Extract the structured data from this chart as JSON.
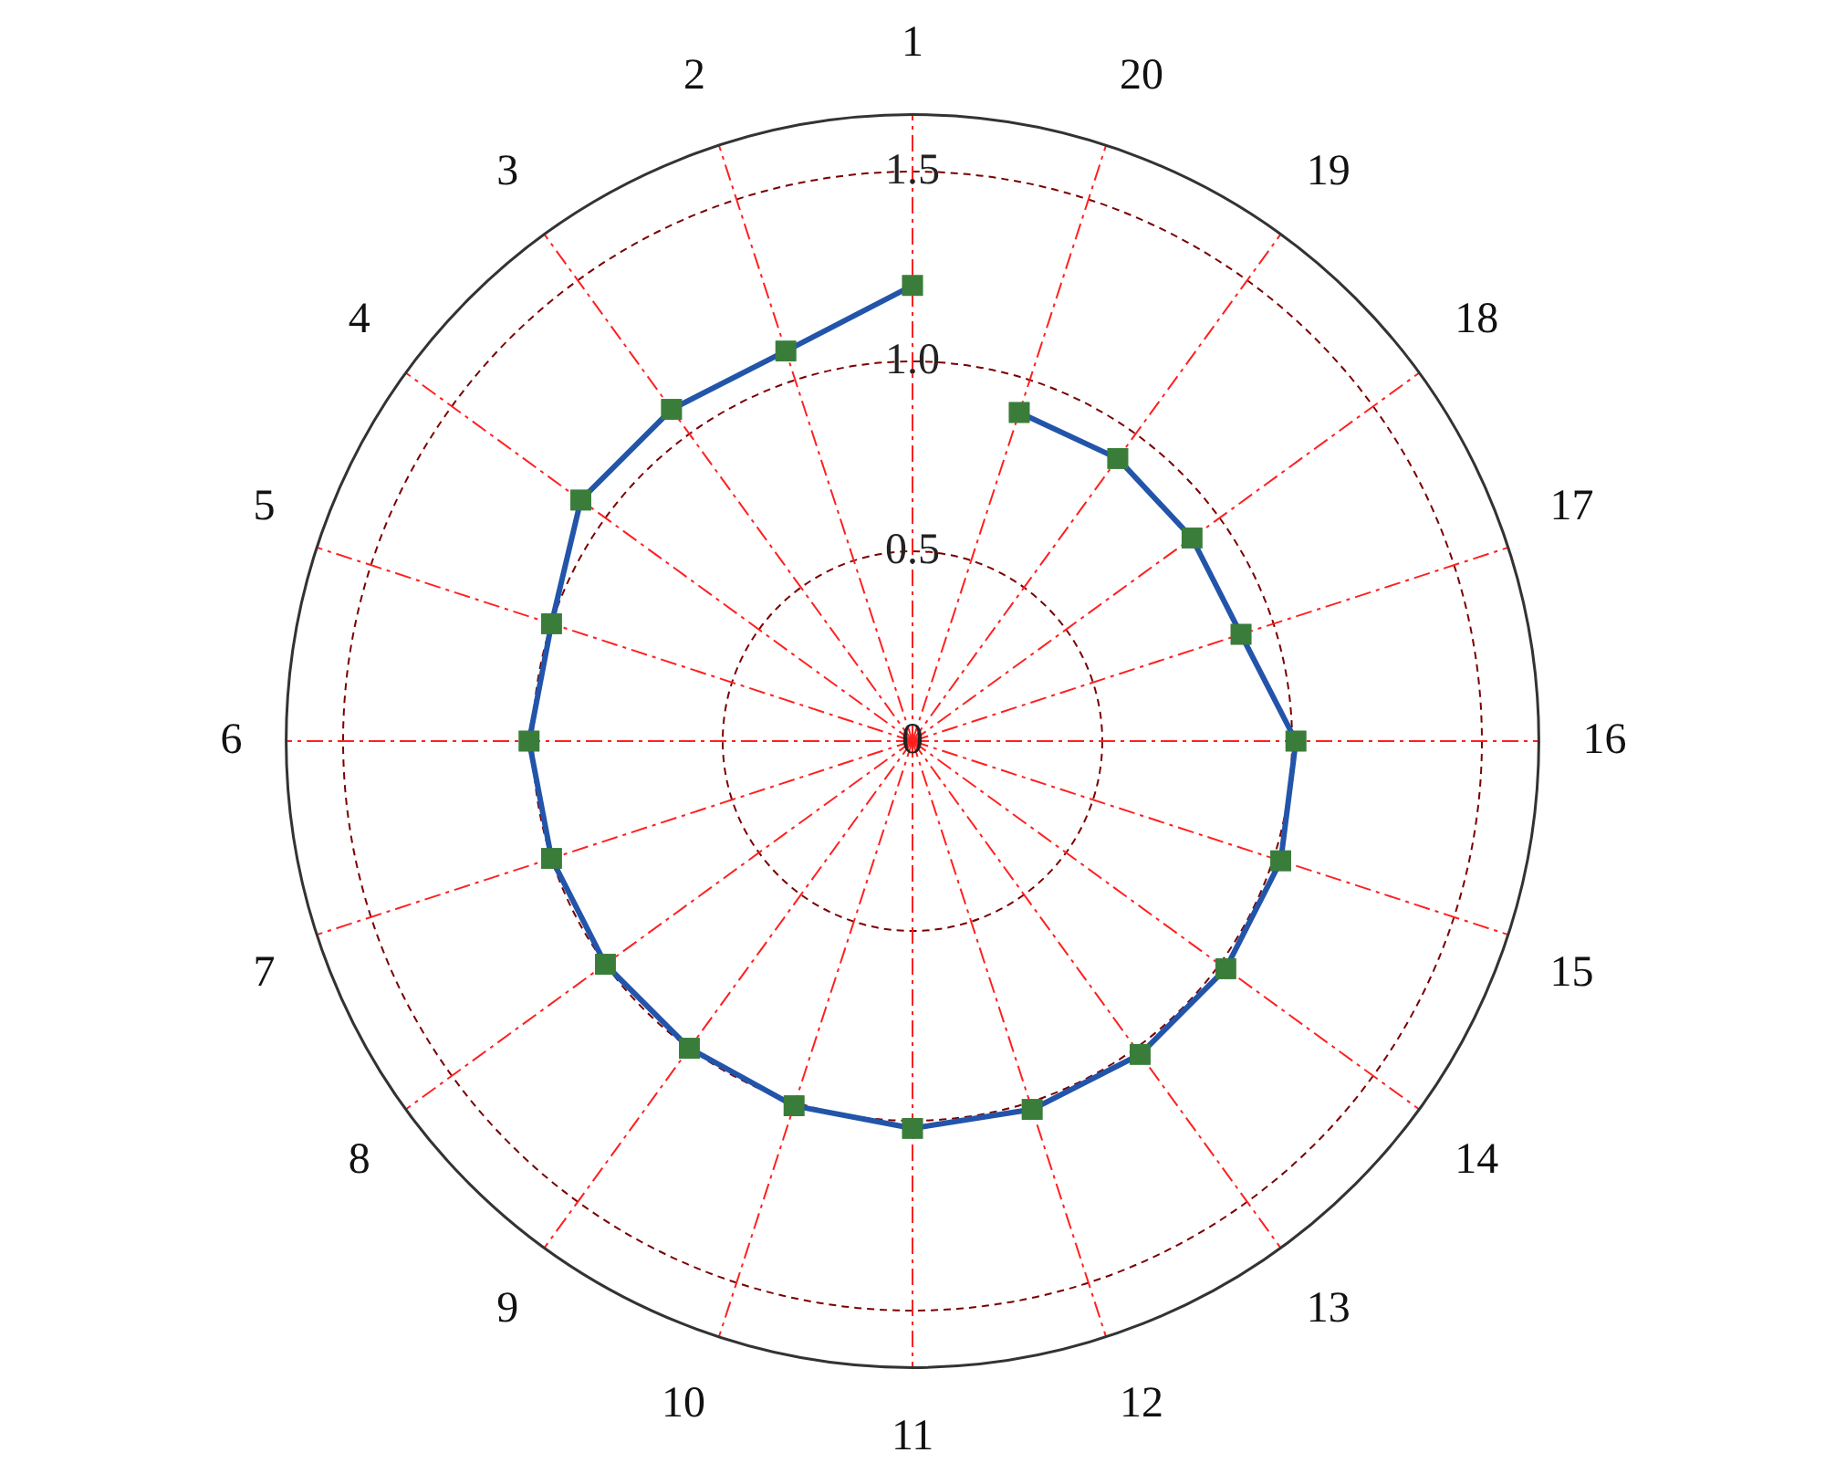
{
  "chart_data": {
    "type": "radar",
    "categories": [
      "1",
      "20",
      "19",
      "18",
      "17",
      "16",
      "15",
      "14",
      "13",
      "12",
      "11",
      "10",
      "9",
      "8",
      "7",
      "6",
      "5",
      "4",
      "3",
      "2"
    ],
    "series": [
      {
        "color": "#2255aa",
        "values": [
          1.2,
          0.91,
          0.92,
          0.91,
          0.91,
          1.01,
          1.02,
          1.02,
          1.02,
          1.02,
          1.02,
          1.01,
          1.0,
          1.0,
          1.0,
          1.01,
          1.0,
          1.08,
          1.08,
          1.08
        ]
      }
    ],
    "ylim": [
      0,
      1.65
    ],
    "yticks": [
      0,
      0.5,
      {
        "value": 1,
        "label": "1.0"
      },
      1.5
    ],
    "grid": true,
    "marker": "square",
    "legend": false
  }
}
